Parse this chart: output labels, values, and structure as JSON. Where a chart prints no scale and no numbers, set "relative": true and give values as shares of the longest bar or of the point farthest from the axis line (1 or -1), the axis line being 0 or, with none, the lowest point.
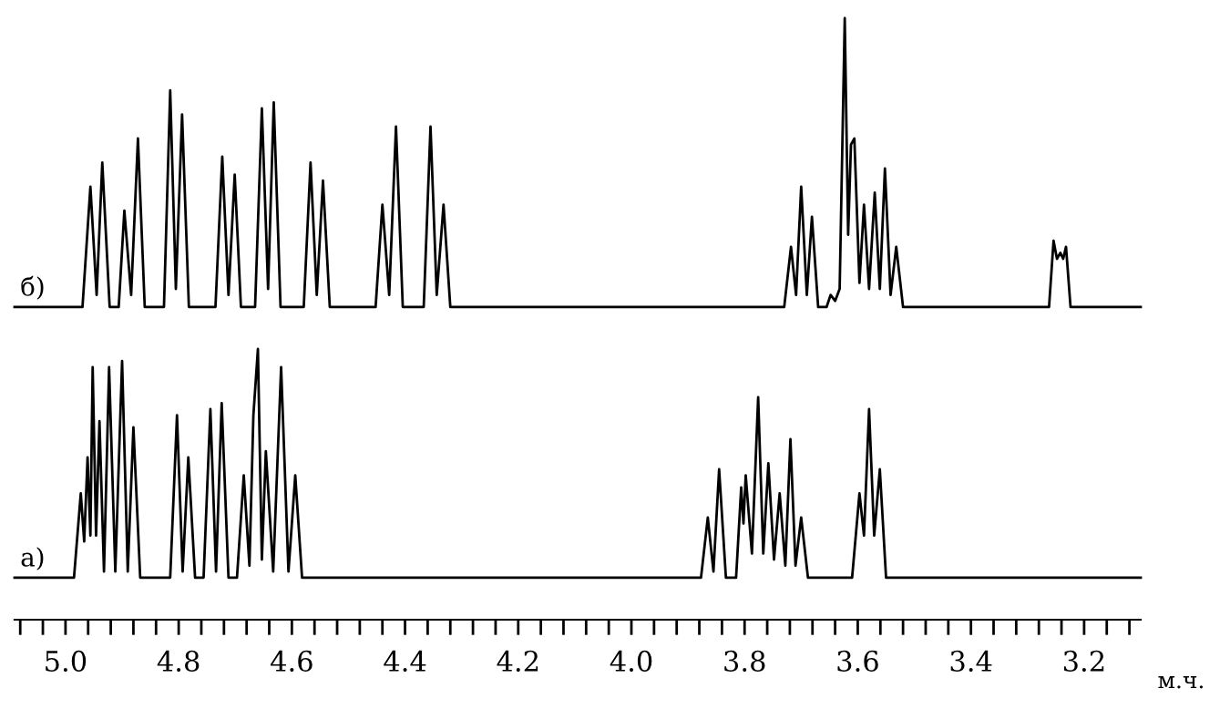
{
  "chart_data": {
    "type": "line",
    "relative": true,
    "xlim": [
      5.09,
      3.1
    ],
    "grid": false,
    "legend": false,
    "tick_labels": "x",
    "xlabel": "м.ч.",
    "xticks": [
      {
        "value": 5.08,
        "label": null
      },
      {
        "value": 5.04,
        "label": null
      },
      {
        "value": 5.0,
        "label": "5.0"
      },
      {
        "value": 4.96,
        "label": null
      },
      {
        "value": 4.92,
        "label": null
      },
      {
        "value": 4.88,
        "label": null
      },
      {
        "value": 4.84,
        "label": null
      },
      {
        "value": 4.8,
        "label": "4.8"
      },
      {
        "value": 4.76,
        "label": null
      },
      {
        "value": 4.72,
        "label": null
      },
      {
        "value": 4.68,
        "label": null
      },
      {
        "value": 4.64,
        "label": null
      },
      {
        "value": 4.6,
        "label": "4.6"
      },
      {
        "value": 4.56,
        "label": null
      },
      {
        "value": 4.52,
        "label": null
      },
      {
        "value": 4.48,
        "label": null
      },
      {
        "value": 4.44,
        "label": null
      },
      {
        "value": 4.4,
        "label": "4.4"
      },
      {
        "value": 4.36,
        "label": null
      },
      {
        "value": 4.32,
        "label": null
      },
      {
        "value": 4.28,
        "label": null
      },
      {
        "value": 4.24,
        "label": null
      },
      {
        "value": 4.2,
        "label": "4.2"
      },
      {
        "value": 4.16,
        "label": null
      },
      {
        "value": 4.12,
        "label": null
      },
      {
        "value": 4.08,
        "label": null
      },
      {
        "value": 4.04,
        "label": null
      },
      {
        "value": 4.0,
        "label": "4.0"
      },
      {
        "value": 3.96,
        "label": null
      },
      {
        "value": 3.92,
        "label": null
      },
      {
        "value": 3.88,
        "label": null
      },
      {
        "value": 3.84,
        "label": null
      },
      {
        "value": 3.8,
        "label": "3.8"
      },
      {
        "value": 3.76,
        "label": null
      },
      {
        "value": 3.72,
        "label": null
      },
      {
        "value": 3.68,
        "label": null
      },
      {
        "value": 3.64,
        "label": null
      },
      {
        "value": 3.6,
        "label": "3.6"
      },
      {
        "value": 3.56,
        "label": null
      },
      {
        "value": 3.52,
        "label": null
      },
      {
        "value": 3.48,
        "label": null
      },
      {
        "value": 3.44,
        "label": null
      },
      {
        "value": 3.4,
        "label": "3.4"
      },
      {
        "value": 3.36,
        "label": null
      },
      {
        "value": 3.32,
        "label": null
      },
      {
        "value": 3.28,
        "label": null
      },
      {
        "value": 3.24,
        "label": null
      },
      {
        "value": 3.2,
        "label": "3.2"
      },
      {
        "value": 3.16,
        "label": null
      },
      {
        "value": 3.12,
        "label": null
      }
    ],
    "series": [
      {
        "name": "б)",
        "color": "#000000",
        "x": [
          5.09,
          4.97,
          4.956,
          4.945,
          4.935,
          4.922,
          4.906,
          4.896,
          4.884,
          4.872,
          4.86,
          4.826,
          4.815,
          4.805,
          4.794,
          4.782,
          4.735,
          4.723,
          4.712,
          4.701,
          4.69,
          4.665,
          4.653,
          4.642,
          4.632,
          4.62,
          4.579,
          4.567,
          4.556,
          4.545,
          4.533,
          4.452,
          4.44,
          4.428,
          4.416,
          4.404,
          4.367,
          4.355,
          4.344,
          4.332,
          4.32,
          3.73,
          3.718,
          3.709,
          3.7,
          3.69,
          3.681,
          3.67,
          3.655,
          3.648,
          3.64,
          3.632,
          3.623,
          3.617,
          3.612,
          3.606,
          3.597,
          3.589,
          3.58,
          3.57,
          3.561,
          3.552,
          3.542,
          3.532,
          3.52,
          3.262,
          3.254,
          3.248,
          3.242,
          3.237,
          3.232,
          3.224,
          3.1
        ],
        "values": [
          0.52,
          0.52,
          0.72,
          0.54,
          0.76,
          0.52,
          0.52,
          0.68,
          0.54,
          0.8,
          0.52,
          0.52,
          0.88,
          0.55,
          0.84,
          0.52,
          0.52,
          0.77,
          0.54,
          0.74,
          0.52,
          0.52,
          0.85,
          0.55,
          0.86,
          0.52,
          0.52,
          0.76,
          0.54,
          0.73,
          0.52,
          0.52,
          0.69,
          0.54,
          0.82,
          0.52,
          0.52,
          0.82,
          0.54,
          0.69,
          0.52,
          0.52,
          0.62,
          0.54,
          0.72,
          0.54,
          0.67,
          0.52,
          0.52,
          0.54,
          0.53,
          0.55,
          1.0,
          0.64,
          0.79,
          0.8,
          0.56,
          0.69,
          0.55,
          0.71,
          0.55,
          0.75,
          0.54,
          0.62,
          0.52,
          0.52,
          0.63,
          0.6,
          0.61,
          0.6,
          0.62,
          0.52,
          0.52
        ]
      },
      {
        "name": "а)",
        "color": "#000000",
        "x": [
          5.09,
          4.985,
          4.973,
          4.967,
          4.961,
          4.956,
          4.952,
          4.946,
          4.94,
          4.932,
          4.923,
          4.912,
          4.9,
          4.89,
          4.88,
          4.868,
          4.815,
          4.803,
          4.793,
          4.783,
          4.771,
          4.756,
          4.744,
          4.734,
          4.724,
          4.712,
          4.697,
          4.685,
          4.675,
          4.668,
          4.66,
          4.653,
          4.646,
          4.633,
          4.619,
          4.606,
          4.594,
          4.582,
          3.877,
          3.865,
          3.855,
          3.845,
          3.833,
          3.815,
          3.806,
          3.802,
          3.798,
          3.787,
          3.776,
          3.767,
          3.758,
          3.748,
          3.738,
          3.728,
          3.719,
          3.71,
          3.7,
          3.688,
          3.61,
          3.597,
          3.589,
          3.58,
          3.571,
          3.561,
          3.55,
          3.1
        ],
        "values": [
          0.07,
          0.07,
          0.21,
          0.13,
          0.27,
          0.14,
          0.42,
          0.14,
          0.33,
          0.08,
          0.42,
          0.08,
          0.43,
          0.08,
          0.32,
          0.07,
          0.07,
          0.34,
          0.08,
          0.27,
          0.07,
          0.07,
          0.35,
          0.08,
          0.36,
          0.07,
          0.07,
          0.24,
          0.09,
          0.34,
          0.45,
          0.1,
          0.28,
          0.08,
          0.42,
          0.08,
          0.24,
          0.07,
          0.07,
          0.17,
          0.08,
          0.25,
          0.07,
          0.07,
          0.22,
          0.16,
          0.24,
          0.11,
          0.37,
          0.11,
          0.26,
          0.1,
          0.21,
          0.09,
          0.3,
          0.09,
          0.17,
          0.07,
          0.07,
          0.21,
          0.14,
          0.35,
          0.14,
          0.25,
          0.07,
          0.07
        ]
      }
    ]
  }
}
